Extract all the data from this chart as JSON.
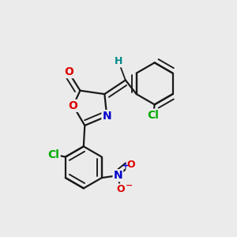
{
  "bg_color": "#ebebeb",
  "bond_color": "#1a1a1a",
  "bond_width": 1.6,
  "dbo": 0.07,
  "atom_colors": {
    "O": "#dd0000",
    "N": "#0000cc",
    "Cl": "#00aa00",
    "H": "#008888",
    "C": "#1a1a1a"
  },
  "font_size": 10,
  "font_size_small": 9
}
